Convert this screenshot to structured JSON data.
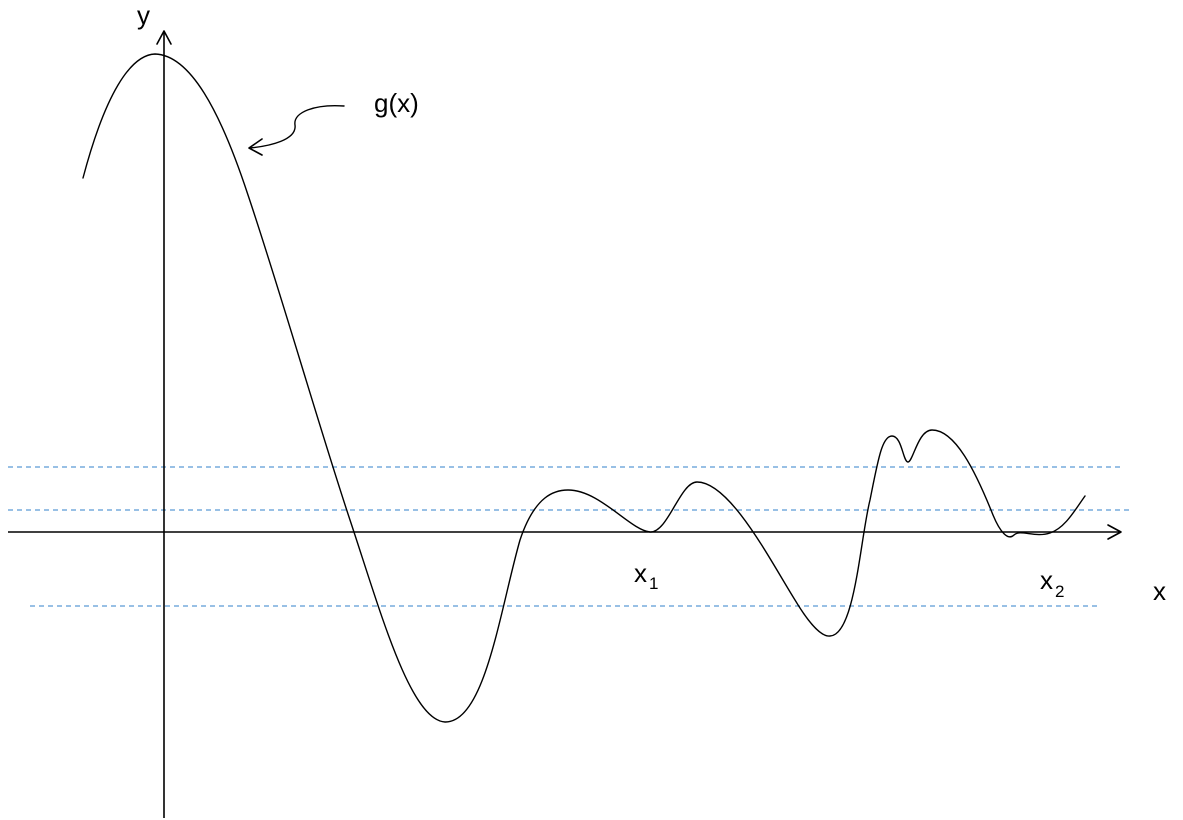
{
  "labels": {
    "y_axis": "y",
    "x_axis": "x",
    "function": "g(x)",
    "x1_main": "x",
    "x1_sub": "1",
    "x2_main": "x",
    "x2_sub": "2"
  },
  "colors": {
    "curve": "#000000",
    "axes": "#000000",
    "dashed_levels": "#5b9bd5"
  }
}
